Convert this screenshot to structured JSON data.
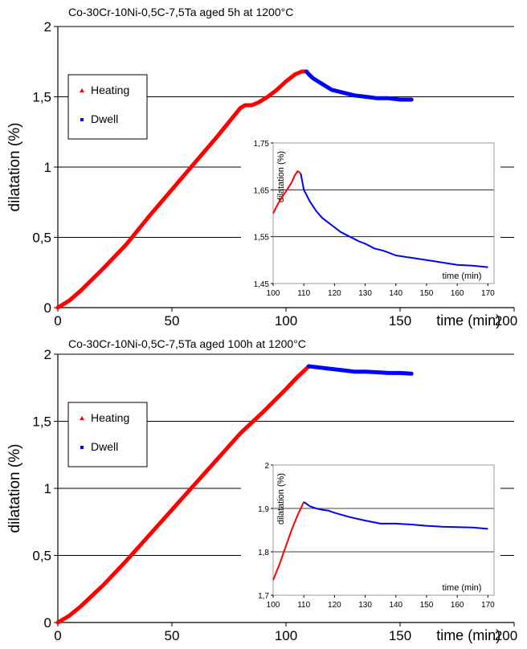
{
  "chart_data": [
    {
      "type": "line",
      "title": "Co-30Cr-10Ni-0,5C-7,5Ta aged 5h at 1200°C",
      "xlabel": "time (min)",
      "ylabel": "dilatation (%)",
      "xlim": [
        0,
        200
      ],
      "ylim": [
        0,
        2
      ],
      "x_ticks": [
        "0",
        "50",
        "100",
        "150",
        "200"
      ],
      "y_ticks": [
        "0",
        "0,5",
        "1",
        "1,5",
        "2"
      ],
      "grid": "horizontal",
      "legend": {
        "position": "top-left",
        "entries": [
          "Heating",
          "Dwell"
        ]
      },
      "series": [
        {
          "name": "Heating",
          "color": "#ff0000",
          "x": [
            0,
            5,
            10,
            20,
            30,
            40,
            50,
            60,
            70,
            78,
            80,
            82,
            85,
            88,
            92,
            96,
            100,
            104,
            107,
            109
          ],
          "y": [
            0,
            0.05,
            0.12,
            0.28,
            0.45,
            0.65,
            0.84,
            1.03,
            1.22,
            1.38,
            1.42,
            1.44,
            1.44,
            1.46,
            1.5,
            1.55,
            1.61,
            1.66,
            1.68,
            1.68
          ]
        },
        {
          "name": "Dwell",
          "color": "#0000ff",
          "x": [
            109,
            110,
            112,
            115,
            118,
            120,
            125,
            130,
            135,
            140,
            145,
            150,
            155
          ],
          "y": [
            1.68,
            1.66,
            1.63,
            1.6,
            1.57,
            1.55,
            1.53,
            1.51,
            1.5,
            1.49,
            1.49,
            1.48,
            1.48
          ]
        }
      ],
      "inset": {
        "xlabel": "time (min)",
        "ylabel": "dilatation (%)",
        "xlim": [
          100,
          172
        ],
        "ylim": [
          1.45,
          1.75
        ],
        "x_ticks": [
          "100",
          "110",
          "120",
          "130",
          "140",
          "150",
          "160",
          "170"
        ],
        "y_ticks": [
          "1,45",
          "1,55",
          "1,65",
          "1,75"
        ],
        "series": [
          {
            "name": "Heating",
            "color": "#ff0000",
            "x": [
              100,
              102,
              104,
              106,
              107,
              108,
              109
            ],
            "y": [
              1.6,
              1.625,
              1.645,
              1.665,
              1.68,
              1.69,
              1.685
            ]
          },
          {
            "name": "Dwell",
            "color": "#0000ff",
            "x": [
              109,
              110,
              112,
              114,
              116,
              118,
              120,
              122,
              125,
              128,
              130,
              133,
              136,
              140,
              145,
              150,
              155,
              160,
              165,
              170
            ],
            "y": [
              1.685,
              1.65,
              1.625,
              1.605,
              1.59,
              1.58,
              1.57,
              1.56,
              1.55,
              1.54,
              1.535,
              1.525,
              1.52,
              1.51,
              1.505,
              1.5,
              1.495,
              1.49,
              1.488,
              1.485
            ]
          }
        ]
      }
    },
    {
      "type": "line",
      "title": "Co-30Cr-10Ni-0,5C-7,5Ta aged 100h at 1200°C",
      "xlabel": "time (min)",
      "ylabel": "dilatation (%)",
      "xlim": [
        0,
        200
      ],
      "ylim": [
        0,
        2
      ],
      "x_ticks": [
        "0",
        "50",
        "100",
        "150",
        "200"
      ],
      "y_ticks": [
        "0",
        "0,5",
        "1",
        "1,5",
        "2"
      ],
      "grid": "horizontal",
      "legend": {
        "position": "top-left",
        "entries": [
          "Heating",
          "Dwell"
        ]
      },
      "series": [
        {
          "name": "Heating",
          "color": "#ff0000",
          "x": [
            0,
            5,
            10,
            20,
            30,
            40,
            50,
            60,
            70,
            80,
            90,
            100,
            105,
            110
          ],
          "y": [
            0,
            0.05,
            0.12,
            0.28,
            0.46,
            0.65,
            0.84,
            1.03,
            1.22,
            1.41,
            1.57,
            1.74,
            1.83,
            1.91
          ]
        },
        {
          "name": "Dwell",
          "color": "#0000ff",
          "x": [
            110,
            115,
            120,
            125,
            130,
            135,
            140,
            145,
            150,
            155
          ],
          "y": [
            1.91,
            1.9,
            1.89,
            1.88,
            1.87,
            1.87,
            1.865,
            1.86,
            1.86,
            1.855
          ]
        }
      ],
      "inset": {
        "xlabel": "time (min)",
        "ylabel": "dilatation (%)",
        "xlim": [
          100,
          172
        ],
        "ylim": [
          1.7,
          2.0
        ],
        "x_ticks": [
          "100",
          "110",
          "120",
          "130",
          "140",
          "150",
          "160",
          "170"
        ],
        "y_ticks": [
          "1,7",
          "1,8",
          "1,9",
          "2"
        ],
        "series": [
          {
            "name": "Heating",
            "color": "#ff0000",
            "x": [
              100,
              102,
              104,
              106,
              108,
              109,
              110
            ],
            "y": [
              1.735,
              1.77,
              1.81,
              1.85,
              1.885,
              1.9,
              1.915
            ]
          },
          {
            "name": "Dwell",
            "color": "#0000ff",
            "x": [
              110,
              112,
              114,
              116,
              118,
              120,
              125,
              130,
              135,
              140,
              145,
              150,
              155,
              160,
              165,
              170
            ],
            "y": [
              1.915,
              1.905,
              1.9,
              1.897,
              1.895,
              1.89,
              1.88,
              1.872,
              1.865,
              1.865,
              1.863,
              1.86,
              1.858,
              1.857,
              1.856,
              1.853
            ]
          }
        ]
      }
    }
  ]
}
